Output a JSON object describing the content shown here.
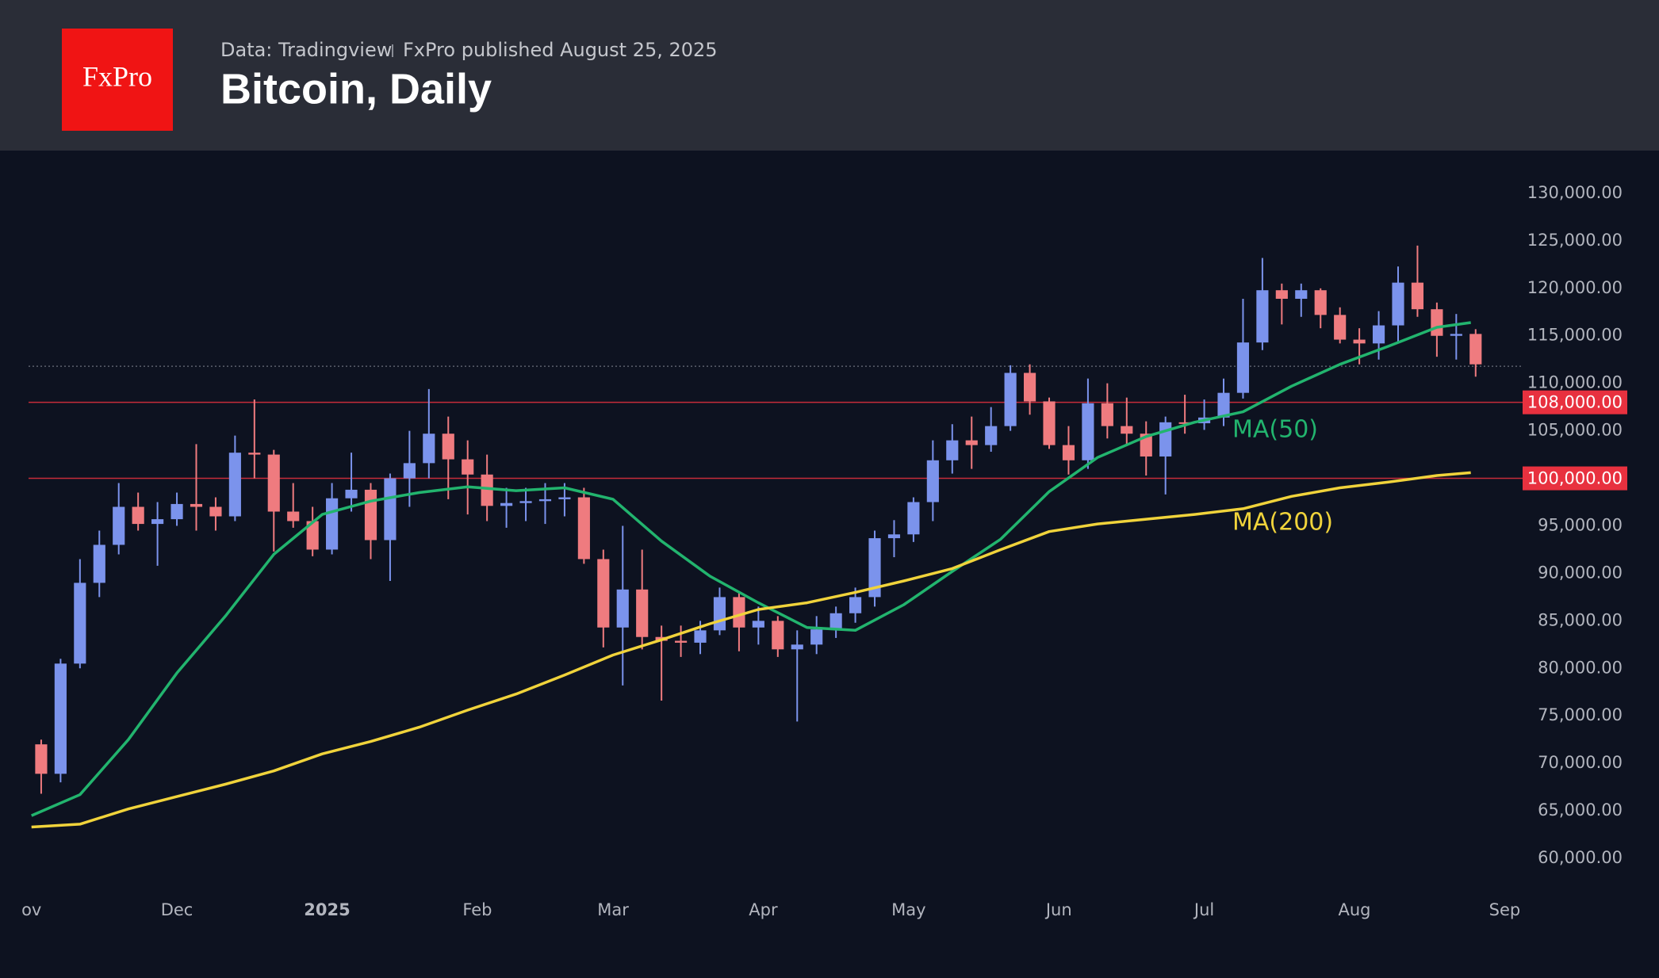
{
  "header": {
    "logo": "FxPro",
    "source": "Data: Tradingview",
    "published": "FxPro published August 25, 2025"
  },
  "chart_data": {
    "type": "candlestick",
    "title": "Bitcoin, Daily",
    "x": [
      0,
      4,
      8,
      12,
      16,
      20,
      24,
      28,
      32,
      36,
      40,
      44,
      48,
      52,
      56,
      60,
      64,
      68,
      72,
      76,
      80,
      84,
      88,
      92,
      96,
      100,
      104,
      108,
      112,
      116,
      120,
      124,
      128,
      132,
      136,
      140,
      144,
      148,
      152,
      156,
      160,
      164,
      168,
      172,
      176,
      180,
      184,
      188,
      192,
      196,
      200,
      204,
      208,
      212,
      216,
      220,
      224,
      228,
      232,
      236,
      240,
      244,
      248,
      252,
      256,
      260,
      264,
      268,
      272,
      276,
      280,
      284,
      288,
      292,
      296
    ],
    "open": [
      72000,
      68900,
      80500,
      89000,
      93000,
      97000,
      95200,
      95700,
      97300,
      97000,
      96000,
      102700,
      102500,
      96500,
      95500,
      92500,
      97900,
      98800,
      93500,
      100000,
      101600,
      104700,
      102000,
      100400,
      97100,
      97400,
      97600,
      97800,
      98000,
      91500,
      84300,
      88300,
      83300,
      82900,
      82700,
      84000,
      87500,
      84300,
      85000,
      82000,
      82500,
      84100,
      85800,
      87500,
      93700,
      94100,
      97500,
      101900,
      104000,
      103500,
      105500,
      111100,
      108100,
      103500,
      101900,
      107900,
      105500,
      104700,
      102300,
      105900,
      105800,
      106400,
      109000,
      114300,
      119800,
      118900,
      119800,
      117200,
      114600,
      114200,
      116100,
      120600,
      117800,
      115000,
      115200
    ],
    "high": [
      72500,
      81000,
      91500,
      94500,
      99500,
      98500,
      97500,
      98500,
      103600,
      98000,
      104500,
      108300,
      103000,
      99500,
      97000,
      99500,
      102700,
      99500,
      100500,
      105000,
      109400,
      106500,
      104000,
      102500,
      99000,
      99000,
      99500,
      99500,
      99000,
      92500,
      95000,
      92500,
      84500,
      84500,
      85000,
      88500,
      88000,
      86500,
      85500,
      84000,
      85500,
      86500,
      88500,
      94500,
      95600,
      98000,
      104000,
      105700,
      106500,
      107500,
      111900,
      112000,
      108500,
      105500,
      110500,
      110000,
      108500,
      106000,
      106500,
      108800,
      108300,
      110500,
      118900,
      123200,
      120500,
      120500,
      120000,
      118000,
      115800,
      117600,
      122300,
      124500,
      118500,
      117300,
      115700
    ],
    "low": [
      66800,
      68000,
      80000,
      87500,
      92000,
      94500,
      90800,
      95000,
      94500,
      94500,
      95500,
      100000,
      92300,
      94800,
      91800,
      92000,
      96500,
      91500,
      89200,
      97000,
      100000,
      97800,
      96200,
      95500,
      94800,
      95500,
      95200,
      96000,
      91000,
      82200,
      78200,
      82000,
      76600,
      81200,
      81500,
      83500,
      81800,
      82500,
      81200,
      74400,
      81500,
      83200,
      84800,
      86500,
      91700,
      93300,
      95500,
      100500,
      101000,
      102800,
      105000,
      106700,
      103100,
      100400,
      101000,
      104200,
      103500,
      100300,
      98300,
      104700,
      105100,
      105500,
      108400,
      113500,
      116200,
      117000,
      115800,
      114200,
      112000,
      112500,
      114300,
      117000,
      112800,
      112500,
      110700
    ],
    "close": [
      68900,
      80500,
      89000,
      93000,
      97000,
      95200,
      95700,
      97300,
      97000,
      96000,
      102700,
      102500,
      96500,
      95500,
      92500,
      97900,
      98800,
      93500,
      100000,
      101600,
      104700,
      102000,
      100400,
      97100,
      97400,
      97600,
      97800,
      98000,
      91500,
      84300,
      88300,
      83300,
      82900,
      82700,
      84000,
      87500,
      84300,
      85000,
      82000,
      82500,
      84100,
      85800,
      87500,
      93700,
      94100,
      97500,
      101900,
      104000,
      103500,
      105500,
      111100,
      108100,
      103500,
      101900,
      107900,
      105500,
      104700,
      102300,
      105900,
      105800,
      106400,
      109000,
      114300,
      119800,
      118900,
      119800,
      117200,
      114600,
      114200,
      116100,
      120600,
      117800,
      115000,
      115200,
      112000
    ],
    "up_color": "#7b93ec",
    "down_color": "#ef7b7f",
    "overlays": [
      {
        "name": "MA(50)",
        "color": "#22b46e",
        "x": [
          0,
          10,
          20,
          30,
          40,
          50,
          60,
          70,
          80,
          90,
          100,
          110,
          120,
          130,
          140,
          150,
          160,
          170,
          180,
          190,
          200,
          210,
          220,
          230,
          240,
          250,
          260,
          270,
          280,
          290,
          297
        ],
        "values": [
          64500,
          66700,
          72500,
          79500,
          85500,
          92000,
          96200,
          97600,
          98500,
          99100,
          98700,
          99000,
          97800,
          93400,
          89700,
          86900,
          84300,
          84000,
          86700,
          90200,
          93600,
          98600,
          102200,
          104400,
          105900,
          107000,
          109700,
          112000,
          113900,
          115900,
          116400
        ]
      },
      {
        "name": "MA(200)",
        "color": "#f0d33b",
        "x": [
          0,
          10,
          20,
          30,
          40,
          50,
          60,
          70,
          80,
          90,
          100,
          110,
          120,
          130,
          140,
          150,
          160,
          170,
          180,
          190,
          200,
          210,
          220,
          230,
          240,
          250,
          260,
          270,
          280,
          290,
          297
        ],
        "values": [
          63300,
          63600,
          65200,
          66500,
          67800,
          69200,
          71000,
          72300,
          73800,
          75600,
          77300,
          79300,
          81400,
          83000,
          84700,
          86200,
          86900,
          88000,
          89200,
          90500,
          92500,
          94400,
          95200,
          95700,
          96200,
          96800,
          98100,
          99000,
          99600,
          100300,
          100600
        ]
      }
    ],
    "levels": [
      {
        "value": 108000,
        "label": "108,000.00",
        "color": "#e8313f"
      },
      {
        "value": 100000,
        "label": "100,000.00",
        "color": "#e8313f"
      }
    ],
    "price_line": 111800,
    "xlim": [
      -6.5,
      309
    ],
    "xticks": [
      {
        "value": 0,
        "label": "ov"
      },
      {
        "value": 30,
        "label": "Dec"
      },
      {
        "value": 61,
        "label": "2025"
      },
      {
        "value": 92,
        "label": "Feb"
      },
      {
        "value": 120,
        "label": "Mar"
      },
      {
        "value": 151,
        "label": "Apr"
      },
      {
        "value": 181,
        "label": "May"
      },
      {
        "value": 212,
        "label": "Jun"
      },
      {
        "value": 242,
        "label": "Jul"
      },
      {
        "value": 273,
        "label": "Aug"
      },
      {
        "value": 304,
        "label": "Sep"
      }
    ],
    "ylim": [
      57750,
      134500
    ],
    "yticks": [
      {
        "value": 60000,
        "label": "60,000.00"
      },
      {
        "value": 65000,
        "label": "65,000.00"
      },
      {
        "value": 70000,
        "label": "70,000.00"
      },
      {
        "value": 75000,
        "label": "75,000.00"
      },
      {
        "value": 80000,
        "label": "80,000.00"
      },
      {
        "value": 85000,
        "label": "85,000.00"
      },
      {
        "value": 90000,
        "label": "90,000.00"
      },
      {
        "value": 95000,
        "label": "95,000.00"
      },
      {
        "value": 100000,
        "label": "100,000.00"
      },
      {
        "value": 105000,
        "label": "105,000.00"
      },
      {
        "value": 110000,
        "label": "110,000.00"
      },
      {
        "value": 115000,
        "label": "115,000.00"
      },
      {
        "value": 120000,
        "label": "120,000.00"
      },
      {
        "value": 125000,
        "label": "125,000.00"
      },
      {
        "value": 130000,
        "label": "130,000.00"
      }
    ]
  }
}
